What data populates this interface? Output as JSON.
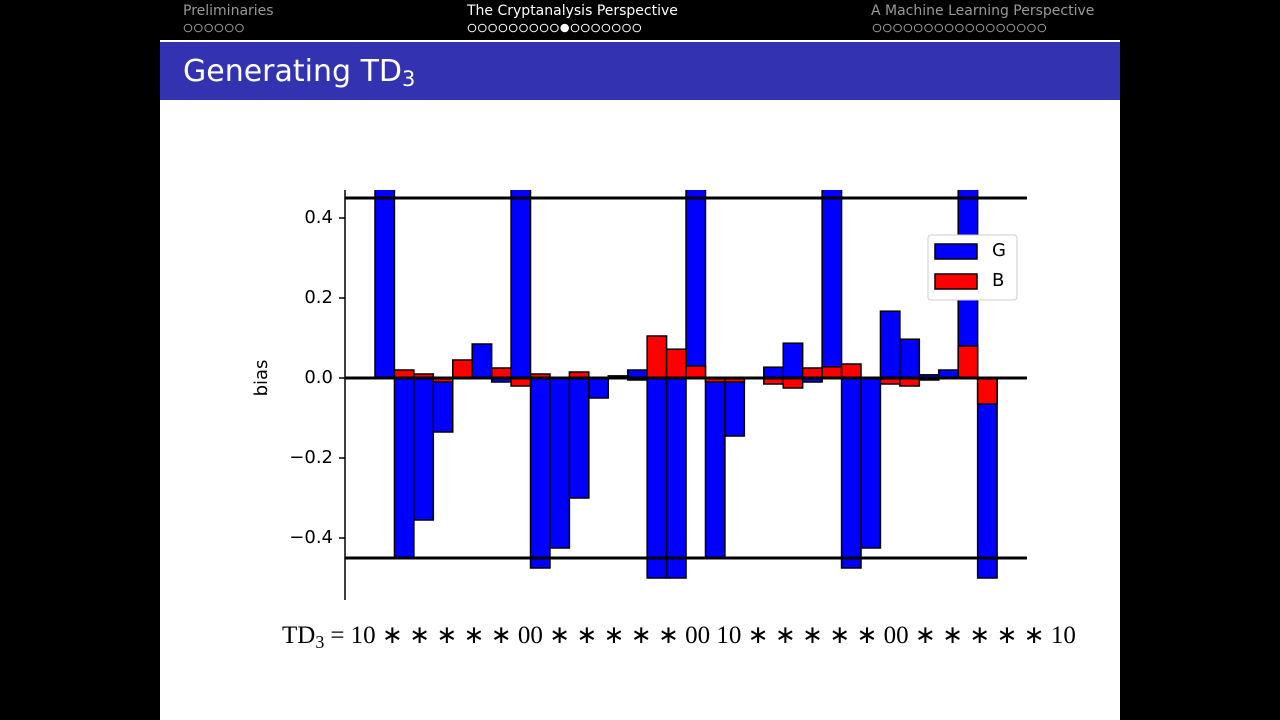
{
  "nav": [
    {
      "label": "Preliminaries"
    },
    {
      "label": "The Cryptanalysis Perspective"
    },
    {
      "label": "A Machine Learning Perspective"
    }
  ],
  "slide_title": {
    "text": "Generating TD",
    "sub": "3"
  },
  "formula": {
    "lhs": "TD",
    "sub": "3",
    "rhs": "= 10 ∗ ∗ ∗ ∗ ∗ 00 ∗ ∗ ∗ ∗ ∗ 00 10 ∗ ∗ ∗ ∗ ∗ 00 ∗ ∗ ∗ ∗ ∗ 10"
  },
  "chart_data": {
    "type": "bar",
    "y_label": "bias",
    "ylim": [
      -0.555,
      0.47
    ],
    "yticks": [
      {
        "value": -0.4,
        "label": "−0.4"
      },
      {
        "value": -0.2,
        "label": "−0.2"
      },
      {
        "value": 0,
        "label": "0.0"
      },
      0.2,
      0.4
    ],
    "hlines": [
      0.45,
      0,
      -0.45
    ],
    "legend": "upper right",
    "series": [
      {
        "name": "G",
        "color": "#0000ff",
        "values": [
          0.5,
          -0.45,
          -0.355,
          -0.135,
          0,
          0.085,
          -0.01,
          0.5,
          -0.475,
          -0.425,
          -0.3,
          -0.05,
          0.005,
          0.02,
          -0.5,
          -0.5,
          0.5,
          -0.45,
          -0.145,
          0,
          0.027,
          0.087,
          -0.01,
          0.5,
          -0.475,
          -0.425,
          0.167,
          0.097,
          0.008,
          0.02,
          0.5,
          -0.5
        ]
      },
      {
        "name": "B",
        "color": "#ff0000",
        "values": [
          0,
          0.02,
          0.01,
          -0.01,
          0.045,
          0,
          0.025,
          -0.02,
          0.01,
          0,
          0.015,
          0,
          0.005,
          -0.005,
          0.105,
          0.072,
          0.03,
          -0.01,
          -0.01,
          0,
          -0.015,
          -0.025,
          0.025,
          0.028,
          0.035,
          0,
          -0.015,
          -0.02,
          -0.005,
          0,
          0.08,
          -0.065
        ]
      }
    ]
  }
}
